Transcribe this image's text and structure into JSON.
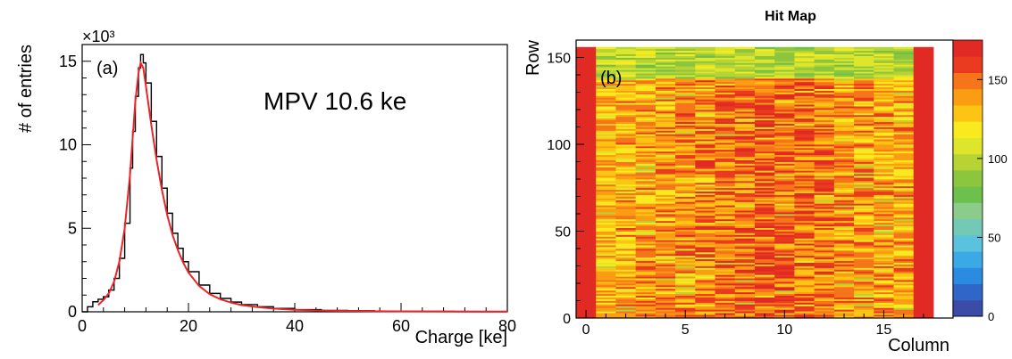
{
  "chart_data": [
    {
      "type": "line",
      "panel_label": "(a)",
      "annotation": "MPV 10.6 ke",
      "exponent_label": "×10³",
      "xlabel": "Charge [ke]",
      "ylabel": "# of entries",
      "xlim": [
        0,
        80
      ],
      "ylim": [
        0,
        16
      ],
      "xticks": [
        0,
        20,
        40,
        60,
        80
      ],
      "yticks": [
        0,
        5,
        10,
        15
      ],
      "grid": false,
      "colors": {
        "histogram": "#000000",
        "fit": "#e8262a"
      },
      "series": [
        {
          "role": "histogram",
          "x": [
            0,
            1,
            2,
            3,
            4,
            5,
            6,
            7,
            8,
            9,
            9.5,
            10,
            10.6,
            11,
            11.5,
            12,
            13,
            14,
            15,
            16,
            17,
            18,
            19,
            20,
            22,
            24,
            26,
            28,
            30,
            33,
            36,
            40,
            45,
            50,
            55,
            60,
            65,
            70,
            75,
            80
          ],
          "y": [
            0,
            0.3,
            0.6,
            0.75,
            0.9,
            1.3,
            2.0,
            3.2,
            5.3,
            8.6,
            10.8,
            12.9,
            14.6,
            15.4,
            14.9,
            13.7,
            11.4,
            9.3,
            7.4,
            5.9,
            4.7,
            3.8,
            3.0,
            2.4,
            1.6,
            1.1,
            0.8,
            0.58,
            0.43,
            0.3,
            0.2,
            0.13,
            0.08,
            0.06,
            0.04,
            0.03,
            0.03,
            0.02,
            0.02,
            0.02
          ]
        },
        {
          "role": "fit",
          "x": [
            3,
            4,
            5,
            6,
            7,
            8,
            9,
            9.5,
            10,
            10.6,
            11,
            11.5,
            12,
            13,
            14,
            15,
            16,
            17,
            18,
            19,
            20,
            22,
            24,
            26,
            28,
            30,
            33,
            36,
            40,
            45,
            50,
            55,
            60,
            65,
            70,
            75,
            80
          ],
          "y": [
            0.4,
            0.7,
            1.1,
            1.8,
            3.0,
            5.0,
            8.2,
            10.4,
            12.6,
            14.3,
            14.9,
            14.6,
            13.5,
            11.2,
            9.1,
            7.3,
            5.8,
            4.6,
            3.7,
            2.95,
            2.35,
            1.55,
            1.05,
            0.75,
            0.55,
            0.4,
            0.28,
            0.19,
            0.12,
            0.07,
            0.05,
            0.035,
            0.025,
            0.02,
            0.015,
            0.01,
            0.01
          ]
        }
      ]
    },
    {
      "type": "heatmap",
      "title": "Hit Map",
      "panel_label": "(b)",
      "xlabel": "Column",
      "ylabel": "Row",
      "xlim": [
        -0.5,
        17.5
      ],
      "ylim": [
        0,
        160
      ],
      "xticks": [
        0,
        5,
        10,
        15
      ],
      "yticks": [
        0,
        50,
        100,
        150
      ],
      "columns": 18,
      "rows": 156,
      "colorbar": {
        "range": [
          0,
          175
        ],
        "ticks": [
          0,
          50,
          100,
          150
        ]
      },
      "description_values": {
        "edge_columns_0_and_17": 175,
        "top_rows_138_to_155": 100,
        "interior_typical": 155
      }
    }
  ]
}
